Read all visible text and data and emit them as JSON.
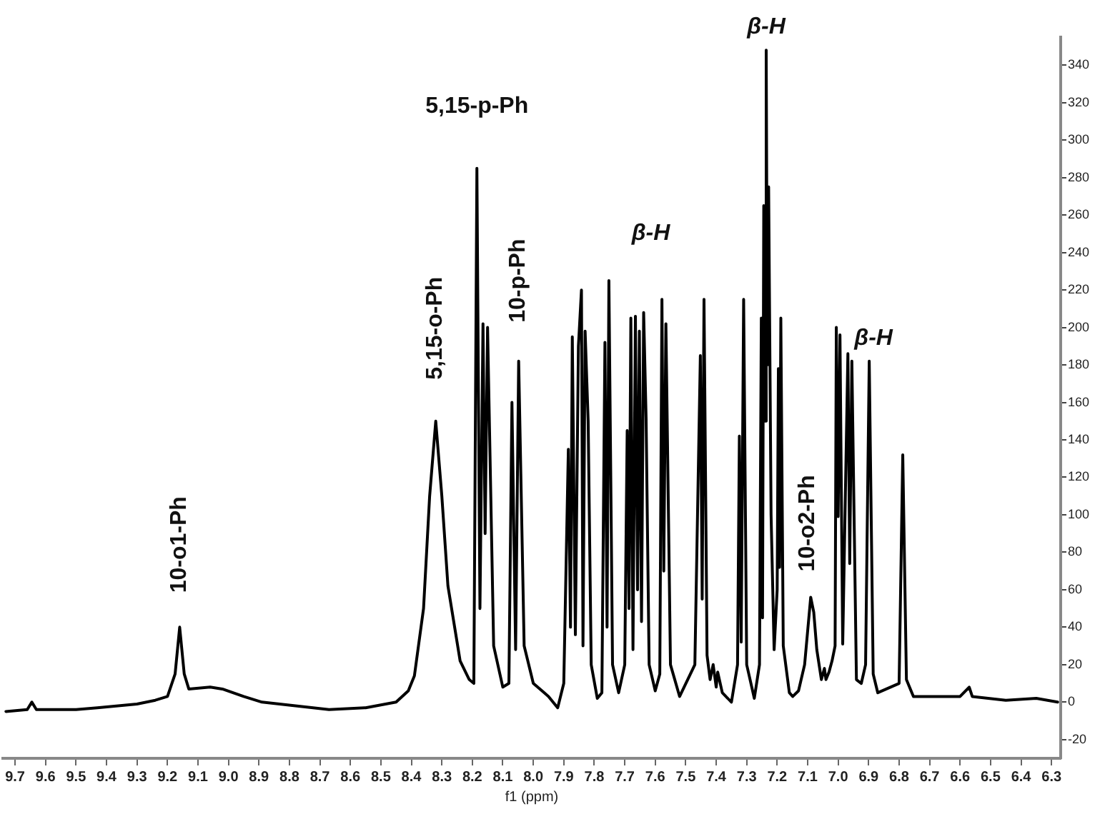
{
  "chart_data": {
    "type": "line",
    "xlabel": "f1 (ppm)",
    "x": [
      9.73,
      9.66,
      9.645,
      9.63,
      9.5,
      9.43,
      9.3,
      9.24,
      9.2,
      9.175,
      9.16,
      9.145,
      9.13,
      9.06,
      9.02,
      8.95,
      8.89,
      8.78,
      8.67,
      8.55,
      8.45,
      8.41,
      8.39,
      8.36,
      8.34,
      8.32,
      8.3,
      8.28,
      8.24,
      8.21,
      8.195,
      8.185,
      8.175,
      8.165,
      8.158,
      8.15,
      8.13,
      8.1,
      8.08,
      8.07,
      8.058,
      8.048,
      8.03,
      8.0,
      7.95,
      7.92,
      7.9,
      7.885,
      7.878,
      7.872,
      7.862,
      7.852,
      7.842,
      7.837,
      7.83,
      7.82,
      7.81,
      7.79,
      7.775,
      7.765,
      7.758,
      7.752,
      7.74,
      7.72,
      7.7,
      7.692,
      7.686,
      7.68,
      7.673,
      7.665,
      7.658,
      7.652,
      7.645,
      7.638,
      7.63,
      7.62,
      7.6,
      7.585,
      7.578,
      7.572,
      7.565,
      7.55,
      7.52,
      7.47,
      7.452,
      7.446,
      7.44,
      7.43,
      7.42,
      7.41,
      7.4,
      7.395,
      7.38,
      7.35,
      7.33,
      7.324,
      7.318,
      7.31,
      7.3,
      7.275,
      7.258,
      7.252,
      7.248,
      7.244,
      7.24,
      7.236,
      7.232,
      7.228,
      7.22,
      7.21,
      7.2,
      7.196,
      7.192,
      7.188,
      7.18,
      7.16,
      7.149,
      7.13,
      7.11,
      7.09,
      7.08,
      7.07,
      7.055,
      7.045,
      7.04,
      7.03,
      7.02,
      7.01,
      7.006,
      7.0,
      6.994,
      6.985,
      6.968,
      6.962,
      6.955,
      6.94,
      6.924,
      6.91,
      6.898,
      6.885,
      6.87,
      6.8,
      6.788,
      6.776,
      6.753,
      6.6,
      6.57,
      6.56,
      6.45,
      6.35,
      6.28
    ],
    "series": [
      {
        "color": "#000000",
        "values": [
          -5,
          -4,
          0,
          -4,
          -4,
          -3,
          -1,
          1,
          3,
          15,
          40,
          15,
          7,
          8,
          7,
          3,
          0,
          -2,
          -4,
          -3,
          0,
          6,
          14,
          50,
          110,
          150,
          110,
          62,
          22,
          12,
          10,
          285,
          50,
          202,
          90,
          200,
          30,
          8,
          10,
          160,
          28,
          182,
          30,
          10,
          3,
          -3,
          10,
          135,
          40,
          195,
          36,
          190,
          220,
          30,
          198,
          150,
          20,
          2,
          5,
          192,
          40,
          225,
          20,
          5,
          20,
          145,
          50,
          205,
          28,
          206,
          60,
          198,
          43,
          208,
          152,
          20,
          6,
          15,
          215,
          70,
          202,
          20,
          3,
          20,
          185,
          55,
          215,
          25,
          12,
          20,
          8,
          16,
          5,
          0,
          20,
          142,
          32,
          215,
          20,
          2,
          20,
          205,
          45,
          265,
          150,
          348,
          180,
          275,
          100,
          28,
          60,
          178,
          72,
          205,
          30,
          5,
          3,
          6,
          20,
          56,
          48,
          28,
          12,
          18,
          12,
          16,
          22,
          30,
          200,
          99,
          196,
          31,
          186,
          74,
          182,
          12,
          10,
          20,
          182,
          15,
          5,
          10,
          132,
          12,
          3,
          3,
          8,
          3,
          1,
          2,
          0
        ]
      }
    ],
    "xlim": [
      9.74,
      6.27
    ],
    "xticks": [
      9.7,
      9.6,
      9.5,
      9.4,
      9.3,
      9.2,
      9.1,
      {
        "value": 9,
        "label": "9.0"
      },
      8.9,
      8.8,
      8.7,
      8.6,
      8.5,
      8.4,
      8.3,
      8.2,
      8.1,
      {
        "value": 8,
        "label": "8.0"
      },
      7.9,
      7.8,
      7.7,
      7.6,
      7.5,
      7.4,
      7.3,
      7.2,
      7.1,
      {
        "value": 7,
        "label": "7.0"
      },
      6.9,
      6.8,
      6.7,
      6.6,
      6.5,
      6.4,
      6.3
    ],
    "ylim": [
      -30,
      355
    ],
    "yticks": [
      -20,
      0,
      20,
      40,
      60,
      80,
      100,
      120,
      140,
      160,
      180,
      200,
      220,
      240,
      260,
      280,
      300,
      320,
      340
    ],
    "grid": false,
    "legend": false,
    "marker": "none",
    "line_style": "solid",
    "annotations": [
      {
        "text": "10-o1-Ph",
        "x": 9.16,
        "y": 40
      },
      {
        "text": "5,15-o-Ph",
        "x": 8.32,
        "y": 150
      },
      {
        "text": "5,15-p-Ph",
        "x": 8.185,
        "y": 285
      },
      {
        "text": "10-p-Ph",
        "x": 8.048,
        "y": 182
      },
      {
        "text": "β-H",
        "x": 7.638,
        "y": 208
      },
      {
        "text": "β-H",
        "x": 7.236,
        "y": 348
      },
      {
        "text": "10-o2-Ph",
        "x": 7.09,
        "y": 56
      },
      {
        "text": "β-H",
        "x": 6.898,
        "y": 182
      }
    ]
  }
}
